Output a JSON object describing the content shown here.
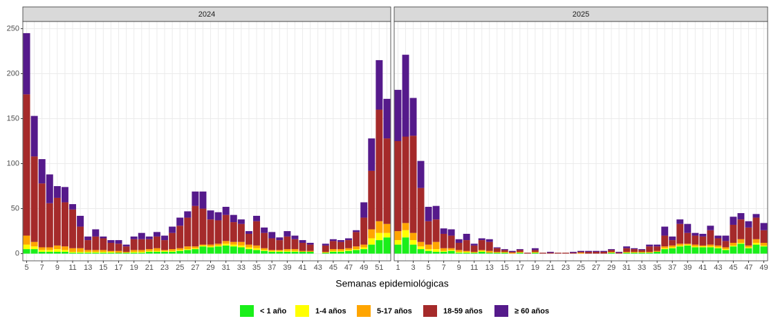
{
  "chart_data": {
    "type": "bar",
    "stacked": true,
    "x_label": "Semanas epidemiológicas",
    "ylim": [
      -8,
      258
    ],
    "yticks": [
      0,
      50,
      100,
      150,
      200,
      250
    ],
    "grid": true,
    "legend": "bottom",
    "panels": [
      {
        "title": "2024",
        "categories": [
          "5",
          null,
          "7",
          null,
          "9",
          null,
          "11",
          null,
          "13",
          null,
          "15",
          null,
          "17",
          null,
          "19",
          null,
          "21",
          null,
          "23",
          null,
          "25",
          null,
          "27",
          null,
          "29",
          null,
          "31",
          null,
          "33",
          null,
          "35",
          null,
          "37",
          null,
          "39",
          null,
          "41",
          null,
          "43",
          null,
          "45",
          null,
          "47",
          null,
          "49",
          null,
          "51",
          null
        ]
      },
      {
        "title": "2025",
        "categories": [
          "1",
          null,
          "3",
          null,
          "5",
          null,
          "7",
          null,
          "9",
          null,
          "11",
          null,
          "13",
          null,
          "15",
          null,
          "17",
          null,
          "19",
          null,
          "21",
          null,
          "23",
          null,
          "25",
          null,
          "27",
          null,
          "29",
          null,
          "31",
          null,
          "33",
          null,
          "35",
          null,
          "37",
          null,
          "39",
          null,
          "41",
          null,
          "43",
          null,
          "45",
          null,
          "47",
          null,
          "49"
        ]
      }
    ],
    "series": [
      {
        "name": "< 1 año",
        "color": "#1aef1a",
        "values": [
          [
            5,
            5,
            2,
            2,
            2,
            2,
            1,
            1,
            1,
            1,
            1,
            1,
            1,
            1,
            1,
            1,
            2,
            2,
            2,
            2,
            3,
            4,
            5,
            8,
            7,
            8,
            9,
            8,
            7,
            5,
            4,
            3,
            2,
            2,
            2,
            2,
            2,
            2,
            null,
            1,
            2,
            2,
            3,
            4,
            5,
            10,
            15,
            18
          ],
          [
            10,
            18,
            10,
            5,
            3,
            2,
            2,
            3,
            1,
            1,
            1,
            2,
            1,
            1,
            1,
            0,
            1,
            0,
            1,
            0,
            0,
            0,
            0,
            0,
            0,
            0,
            0,
            0,
            1,
            0,
            1,
            1,
            1,
            1,
            2,
            5,
            6,
            8,
            9,
            7,
            7,
            7,
            6,
            4,
            8,
            11,
            6,
            10,
            8
          ]
        ]
      },
      {
        "name": "1-4 años",
        "color": "#ffff00",
        "values": [
          [
            5,
            3,
            2,
            2,
            3,
            2,
            1,
            1,
            1,
            1,
            1,
            1,
            0,
            0,
            1,
            1,
            1,
            1,
            1,
            1,
            1,
            1,
            1,
            1,
            1,
            1,
            2,
            2,
            2,
            2,
            2,
            1,
            1,
            1,
            1,
            1,
            0,
            0,
            null,
            0,
            1,
            1,
            1,
            1,
            2,
            7,
            8,
            5
          ],
          [
            5,
            8,
            5,
            3,
            2,
            3,
            1,
            1,
            1,
            1,
            0,
            1,
            0,
            0,
            0,
            0,
            0,
            0,
            0,
            0,
            0,
            0,
            0,
            0,
            0,
            0,
            0,
            0,
            0,
            0,
            0,
            0,
            0,
            0,
            0,
            1,
            1,
            1,
            1,
            1,
            1,
            1,
            1,
            1,
            1,
            1,
            1,
            2,
            1
          ]
        ]
      },
      {
        "name": "5-17 años",
        "color": "#ffa500",
        "values": [
          [
            10,
            5,
            3,
            3,
            4,
            4,
            4,
            4,
            2,
            2,
            2,
            1,
            2,
            1,
            2,
            2,
            2,
            3,
            1,
            2,
            2,
            3,
            2,
            1,
            2,
            2,
            3,
            3,
            4,
            3,
            3,
            2,
            1,
            1,
            2,
            2,
            1,
            1,
            null,
            1,
            2,
            2,
            2,
            3,
            3,
            10,
            13,
            10
          ],
          [
            10,
            8,
            8,
            5,
            5,
            8,
            3,
            2,
            2,
            1,
            1,
            1,
            2,
            1,
            1,
            1,
            1,
            0,
            1,
            0,
            0,
            0,
            0,
            0,
            1,
            0,
            0,
            0,
            1,
            0,
            1,
            1,
            1,
            1,
            1,
            2,
            2,
            2,
            1,
            2,
            1,
            2,
            2,
            2,
            3,
            4,
            2,
            4,
            3
          ]
        ]
      },
      {
        "name": "18-59 años",
        "color": "#a52a2a",
        "values": [
          [
            157,
            95,
            71,
            49,
            53,
            49,
            43,
            24,
            11,
            15,
            13,
            9,
            8,
            6,
            12,
            12,
            11,
            13,
            11,
            18,
            25,
            32,
            45,
            40,
            28,
            26,
            29,
            22,
            20,
            12,
            27,
            17,
            13,
            11,
            14,
            11,
            9,
            7,
            null,
            7,
            9,
            8,
            9,
            16,
            30,
            65,
            124,
            95
          ],
          [
            100,
            96,
            108,
            60,
            26,
            25,
            16,
            14,
            8,
            12,
            7,
            11,
            10,
            4,
            2,
            1,
            2,
            1,
            2,
            1,
            1,
            1,
            1,
            1,
            1,
            2,
            2,
            2,
            2,
            1,
            4,
            3,
            2,
            6,
            5,
            12,
            6,
            22,
            12,
            10,
            10,
            16,
            8,
            7,
            20,
            22,
            20,
            24,
            14
          ]
        ]
      },
      {
        "name": "≥ 60 años",
        "color": "#551a8b",
        "values": [
          [
            68,
            45,
            27,
            32,
            13,
            17,
            6,
            12,
            4,
            8,
            2,
            3,
            4,
            2,
            3,
            7,
            3,
            5,
            5,
            7,
            9,
            7,
            16,
            19,
            10,
            9,
            9,
            8,
            5,
            3,
            6,
            6,
            7,
            3,
            6,
            4,
            3,
            2,
            null,
            2,
            2,
            2,
            2,
            2,
            17,
            36,
            55,
            44
          ],
          [
            57,
            91,
            42,
            30,
            16,
            15,
            6,
            7,
            4,
            7,
            2,
            2,
            3,
            1,
            1,
            1,
            1,
            0,
            2,
            0,
            1,
            0,
            0,
            1,
            1,
            1,
            1,
            1,
            1,
            1,
            2,
            1,
            1,
            2,
            2,
            10,
            4,
            5,
            10,
            3,
            3,
            5,
            3,
            6,
            9,
            7,
            7,
            4,
            8
          ]
        ]
      }
    ]
  }
}
